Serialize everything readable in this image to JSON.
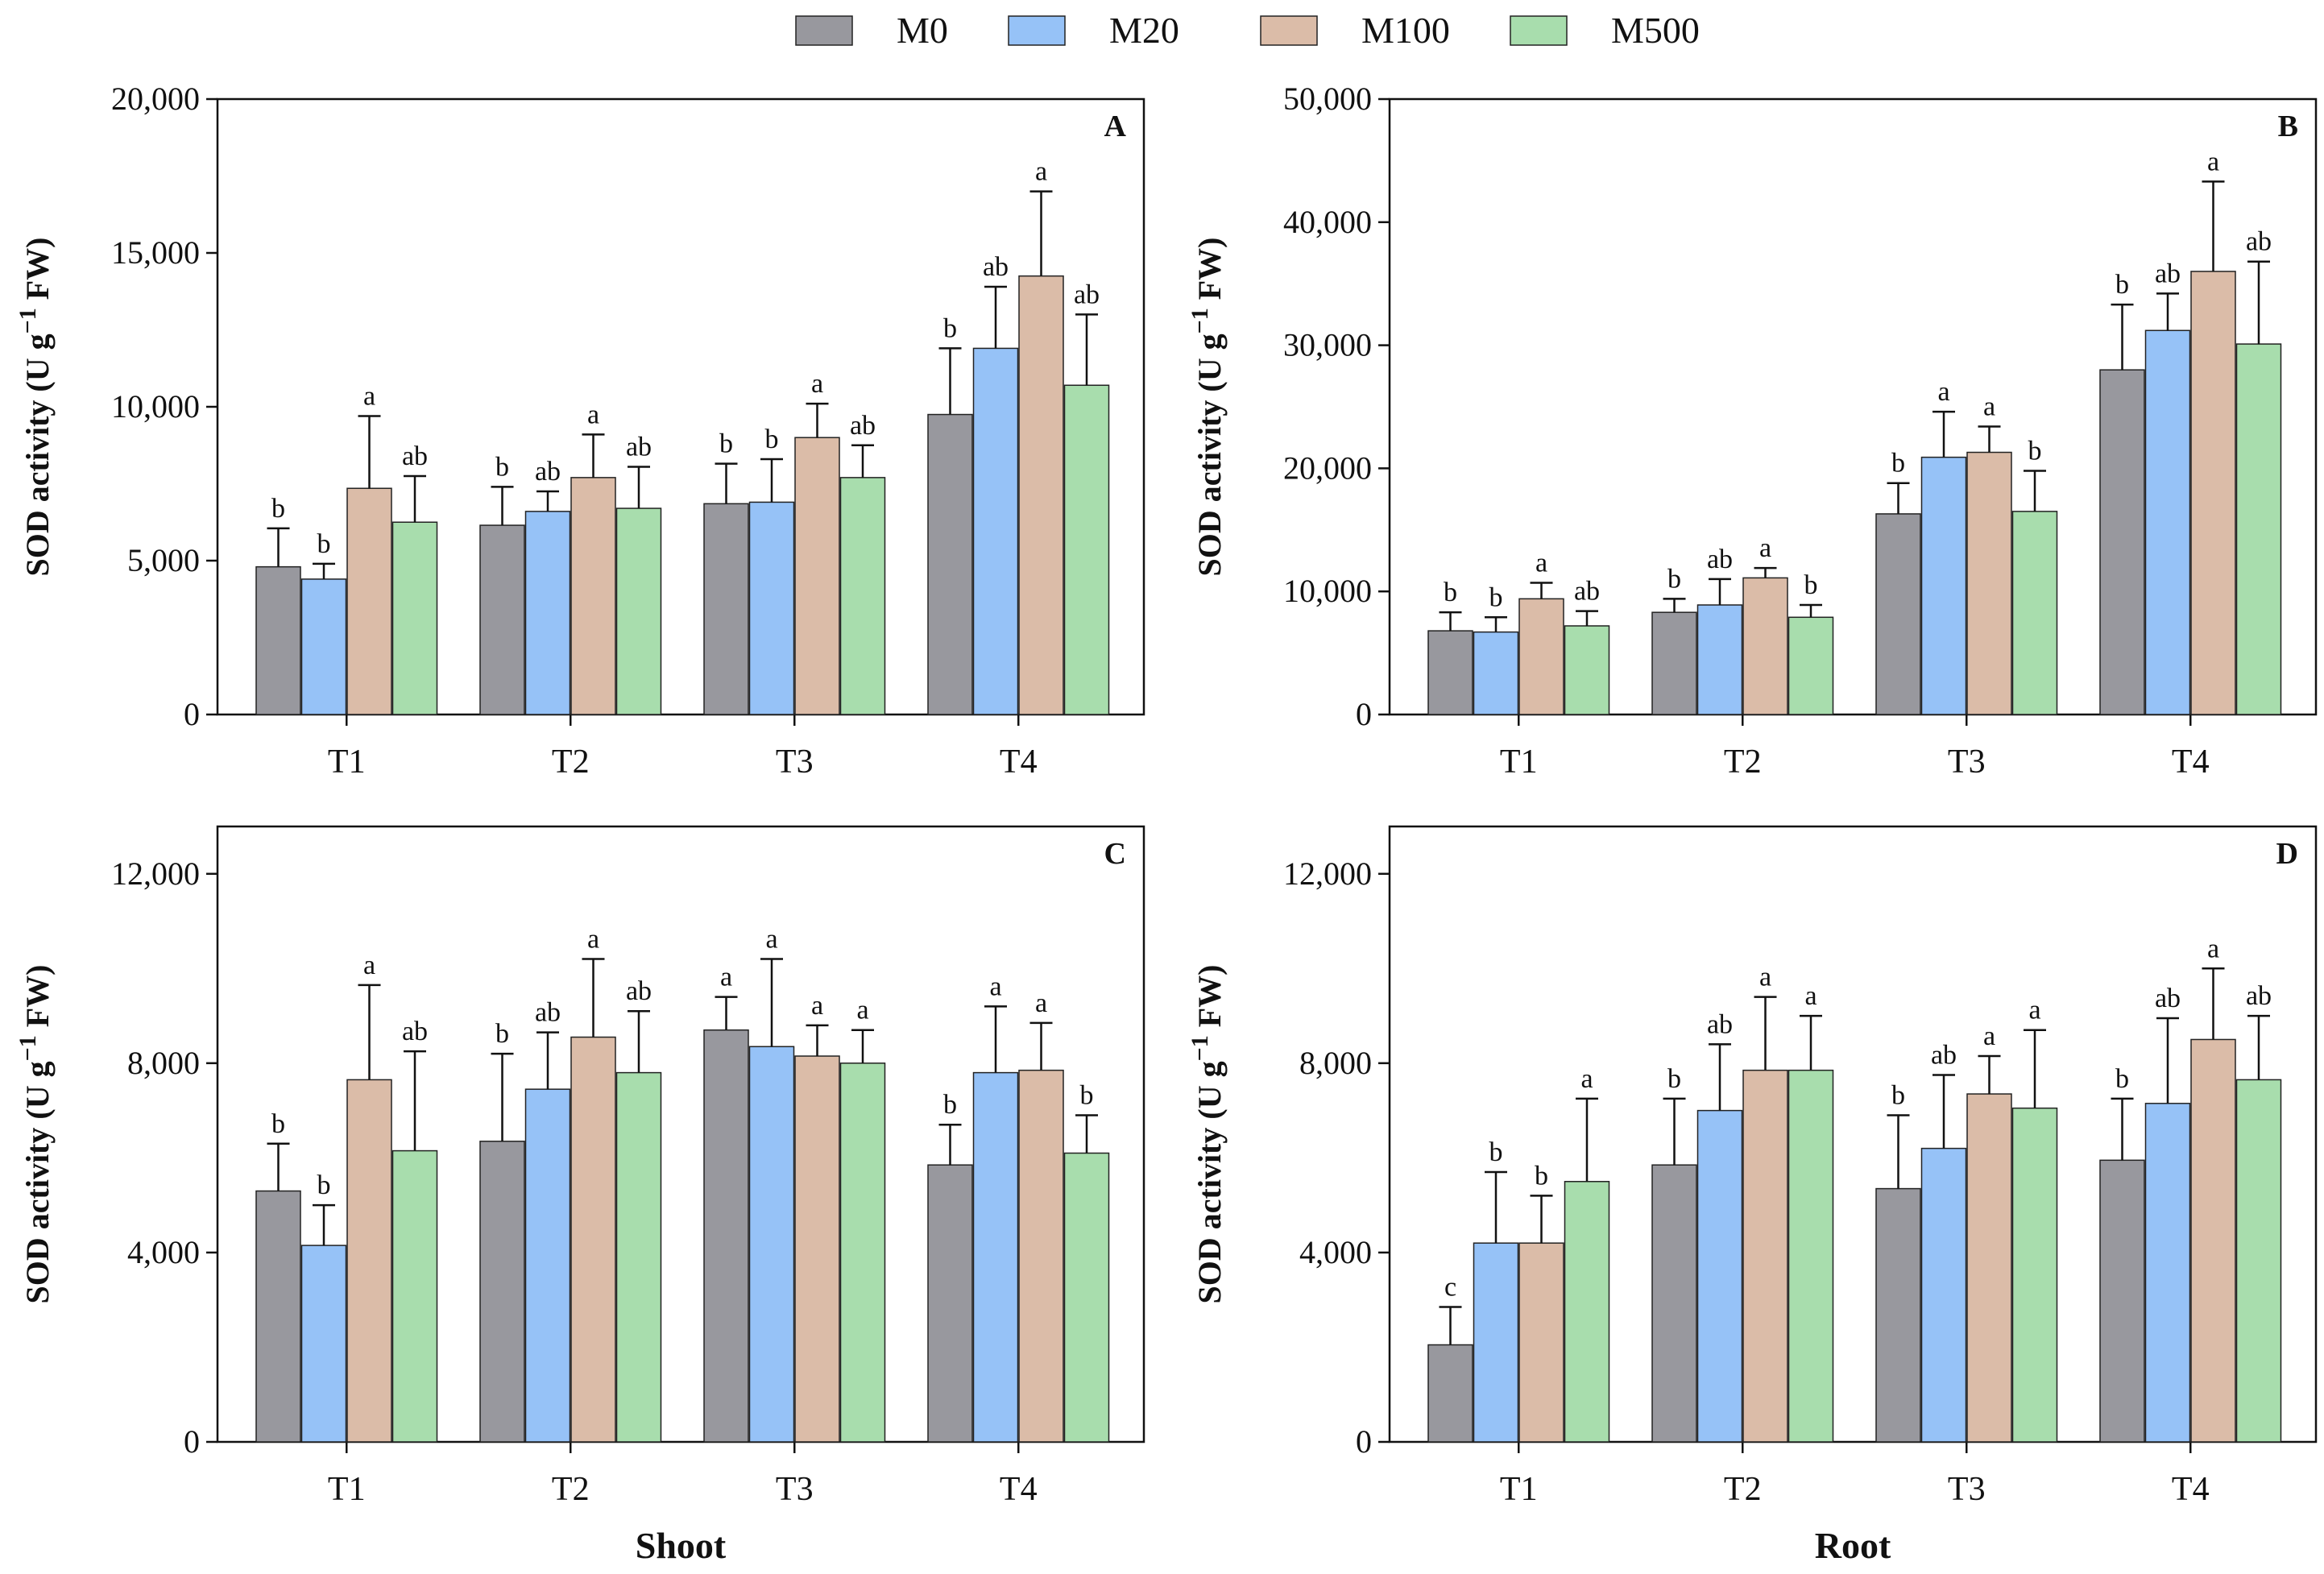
{
  "chart_data": {
    "type": "bar",
    "legend": {
      "position": "top-center",
      "entries": [
        {
          "name": "M0",
          "color": "#98989e"
        },
        {
          "name": "M20",
          "color": "#96c2f7"
        },
        {
          "name": "M100",
          "color": "#dbbca8"
        },
        {
          "name": "M500",
          "color": "#a8ddad"
        }
      ]
    },
    "column_labels": [
      "Shoot",
      "Root"
    ],
    "panels": [
      {
        "panel": "A",
        "ylabel_main": "SOD activity (U g",
        "ylabel_sup": "−1",
        "ylabel_tail": " FW)",
        "ylim": [
          0,
          20000
        ],
        "yticks": [
          0,
          5000,
          10000,
          15000,
          20000
        ],
        "ytick_labels": [
          "0",
          "5,000",
          "10,000",
          "15,000",
          "20,000"
        ],
        "categories": [
          "T1",
          "T2",
          "T3",
          "T4"
        ],
        "series": [
          {
            "name": "M0",
            "values": [
              4800,
              6150,
              6850,
              9750
            ],
            "errors": [
              1250,
              1250,
              1300,
              2150
            ],
            "letters": [
              "b",
              "b",
              "b",
              "b"
            ]
          },
          {
            "name": "M20",
            "values": [
              4400,
              6600,
              6900,
              11900
            ],
            "errors": [
              500,
              650,
              1400,
              2000
            ],
            "letters": [
              "b",
              "ab",
              "b",
              "ab"
            ]
          },
          {
            "name": "M100",
            "values": [
              7350,
              7700,
              9000,
              14250
            ],
            "errors": [
              2350,
              1400,
              1100,
              2750
            ],
            "letters": [
              "a",
              "a",
              "a",
              "a"
            ]
          },
          {
            "name": "M500",
            "values": [
              6250,
              6700,
              7700,
              10700
            ],
            "errors": [
              1500,
              1350,
              1050,
              2300
            ],
            "letters": [
              "ab",
              "ab",
              "ab",
              "ab"
            ]
          }
        ]
      },
      {
        "panel": "B",
        "ylabel_main": "SOD activity (U g",
        "ylabel_sup": "−1",
        "ylabel_tail": " FW)",
        "ylim": [
          0,
          50000
        ],
        "yticks": [
          0,
          10000,
          20000,
          30000,
          40000,
          50000
        ],
        "ytick_labels": [
          "0",
          "10,000",
          "20,000",
          "30,000",
          "40,000",
          "50,000"
        ],
        "categories": [
          "T1",
          "T2",
          "T3",
          "T4"
        ],
        "series": [
          {
            "name": "M0",
            "values": [
              6800,
              8300,
              16300,
              28000
            ],
            "errors": [
              1500,
              1100,
              2500,
              5300
            ],
            "letters": [
              "b",
              "b",
              "b",
              "b"
            ]
          },
          {
            "name": "M20",
            "values": [
              6700,
              8900,
              20900,
              31200
            ],
            "errors": [
              1200,
              2100,
              3700,
              3000
            ],
            "letters": [
              "b",
              "ab",
              "a",
              "ab"
            ]
          },
          {
            "name": "M100",
            "values": [
              9400,
              11100,
              21300,
              36000
            ],
            "errors": [
              1300,
              800,
              2100,
              7300
            ],
            "letters": [
              "a",
              "a",
              "a",
              "a"
            ]
          },
          {
            "name": "M500",
            "values": [
              7200,
              7900,
              16500,
              30100
            ],
            "errors": [
              1200,
              1000,
              3300,
              6700
            ],
            "letters": [
              "ab",
              "b",
              "b",
              "ab"
            ]
          }
        ]
      },
      {
        "panel": "C",
        "ylabel_main": "SOD activity (U g",
        "ylabel_sup": "−1",
        "ylabel_tail": " FW)",
        "ylim": [
          0,
          13000
        ],
        "yticks": [
          0,
          4000,
          8000,
          12000
        ],
        "ytick_labels": [
          "0",
          "4,000",
          "8,000",
          "12,000"
        ],
        "categories": [
          "T1",
          "T2",
          "T3",
          "T4"
        ],
        "series": [
          {
            "name": "M0",
            "values": [
              5300,
              6350,
              8700,
              5850
            ],
            "errors": [
              1000,
              1850,
              700,
              850
            ],
            "letters": [
              "b",
              "b",
              "a",
              "b"
            ]
          },
          {
            "name": "M20",
            "values": [
              4150,
              7450,
              8350,
              7800
            ],
            "errors": [
              850,
              1200,
              1850,
              1400
            ],
            "letters": [
              "b",
              "ab",
              "a",
              "a"
            ]
          },
          {
            "name": "M100",
            "values": [
              7650,
              8550,
              8150,
              7850
            ],
            "errors": [
              2000,
              1650,
              650,
              1000
            ],
            "letters": [
              "a",
              "a",
              "a",
              "a"
            ]
          },
          {
            "name": "M500",
            "values": [
              6150,
              7800,
              8000,
              6100
            ],
            "errors": [
              2100,
              1300,
              700,
              800
            ],
            "letters": [
              "ab",
              "ab",
              "a",
              "b"
            ]
          }
        ]
      },
      {
        "panel": "D",
        "ylabel_main": "SOD activity (U g",
        "ylabel_sup": "−1",
        "ylabel_tail": " FW)",
        "ylim": [
          0,
          13000
        ],
        "yticks": [
          0,
          4000,
          8000,
          12000
        ],
        "ytick_labels": [
          "0",
          "4,000",
          "8,000",
          "12,000"
        ],
        "categories": [
          "T1",
          "T2",
          "T3",
          "T4"
        ],
        "series": [
          {
            "name": "M0",
            "values": [
              2050,
              5850,
              5350,
              5950
            ],
            "errors": [
              800,
              1400,
              1550,
              1300
            ],
            "letters": [
              "c",
              "b",
              "b",
              "b"
            ]
          },
          {
            "name": "M20",
            "values": [
              4200,
              7000,
              6200,
              7150
            ],
            "errors": [
              1500,
              1400,
              1550,
              1800
            ],
            "letters": [
              "b",
              "ab",
              "ab",
              "ab"
            ]
          },
          {
            "name": "M100",
            "values": [
              4200,
              7850,
              7350,
              8500
            ],
            "errors": [
              1000,
              1550,
              800,
              1500
            ],
            "letters": [
              "b",
              "a",
              "a",
              "a"
            ]
          },
          {
            "name": "M500",
            "values": [
              5500,
              7850,
              7050,
              7650
            ],
            "errors": [
              1750,
              1150,
              1650,
              1350
            ],
            "letters": [
              "a",
              "a",
              "a",
              "ab"
            ]
          }
        ]
      }
    ]
  }
}
